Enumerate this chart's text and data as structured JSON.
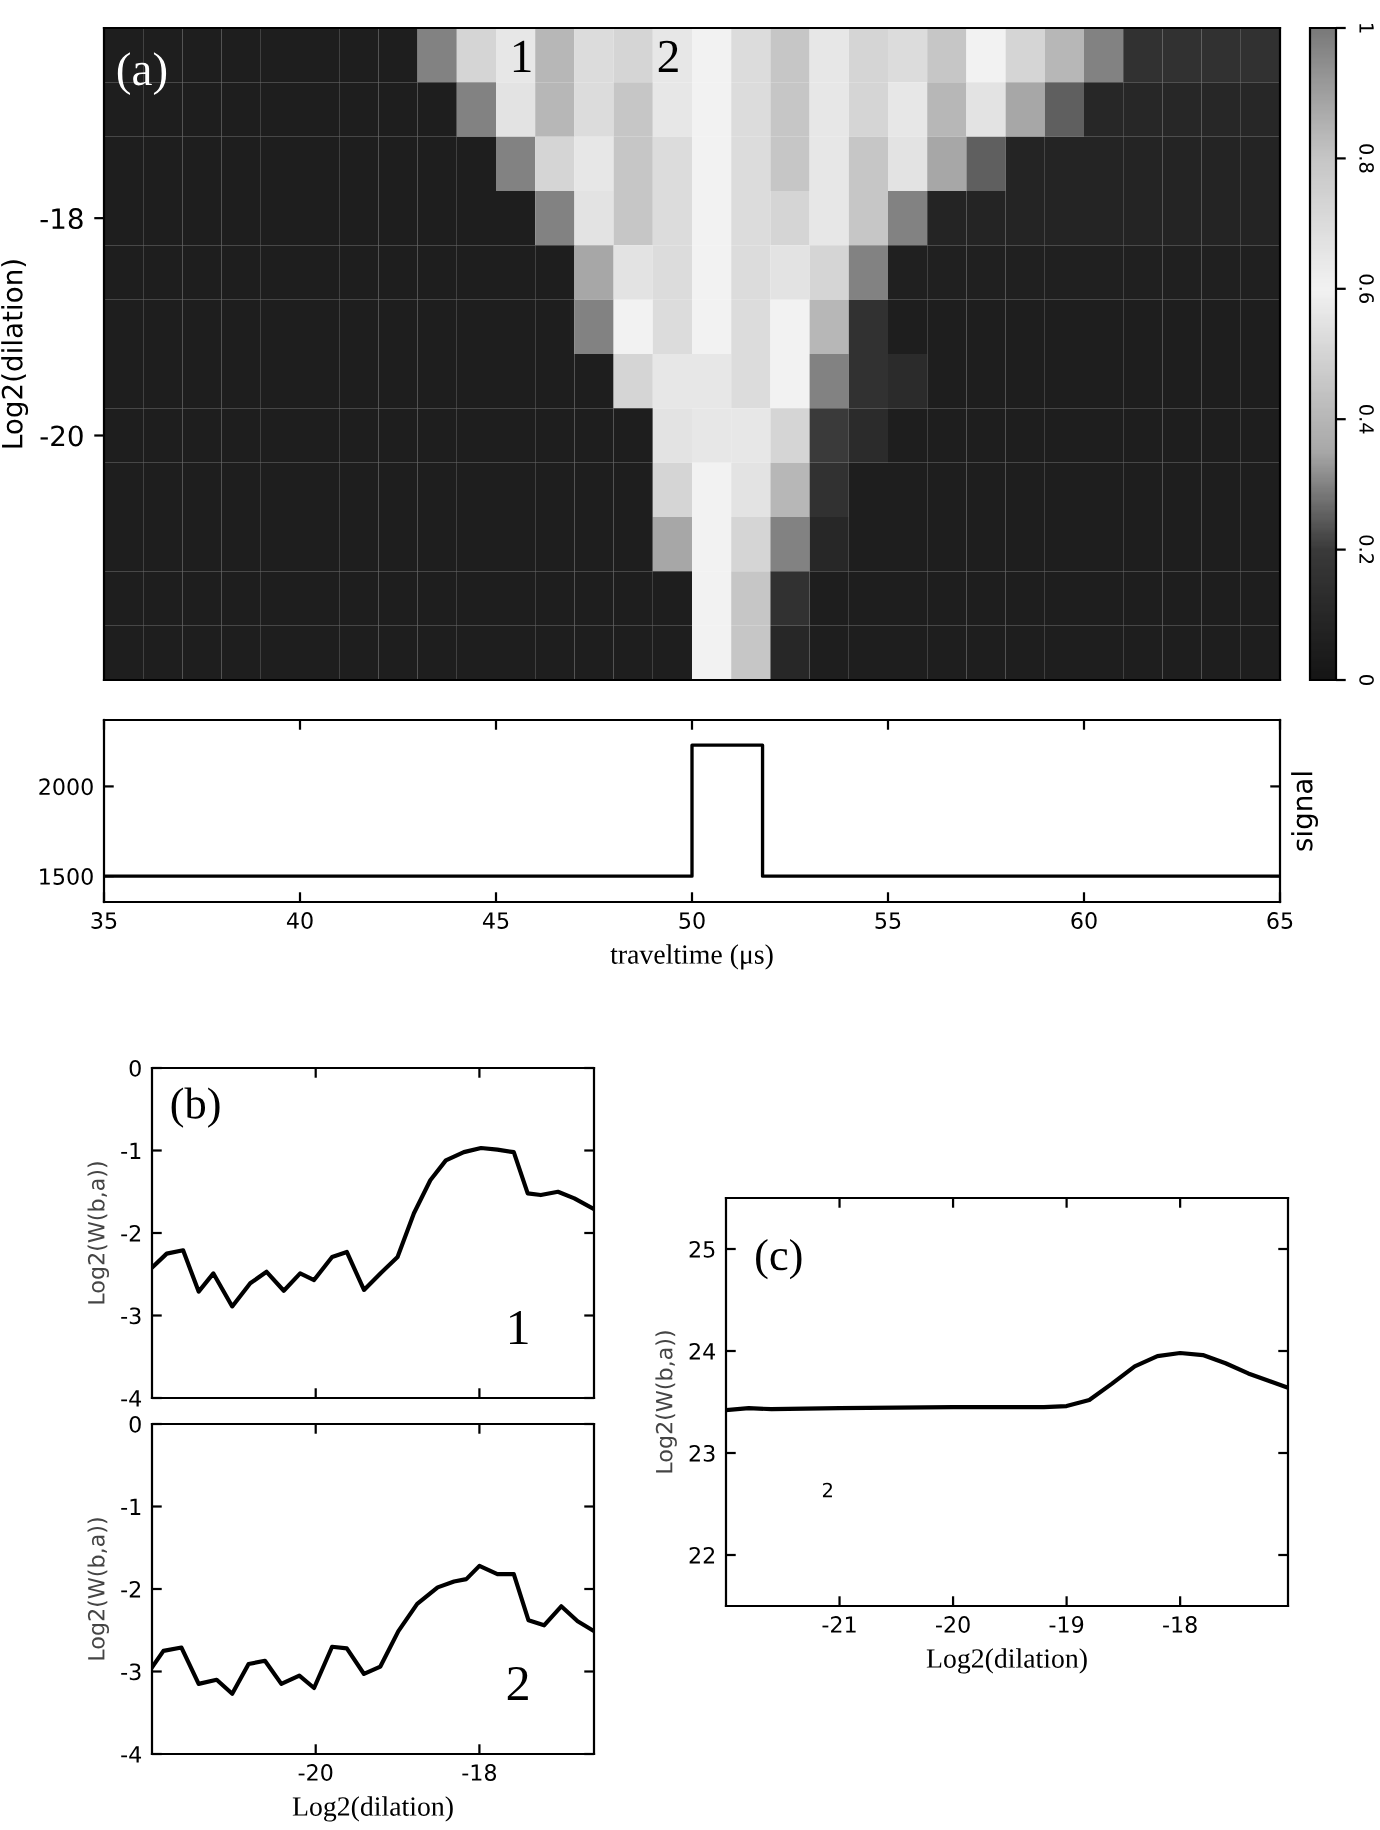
{
  "chart_data": [
    {
      "type": "heatmap",
      "ylabel": "Log2(dilation)",
      "annotations": [
        "(a)",
        "1",
        "2"
      ],
      "categories": [
        null,
        null,
        null,
        null,
        null,
        null,
        null,
        null,
        null,
        null,
        null,
        null,
        null,
        null,
        null,
        null,
        null,
        null,
        null,
        null,
        null,
        null,
        null,
        null,
        null,
        null,
        null,
        null,
        null,
        null
      ],
      "y_categories": [
        null,
        null,
        null,
        "-18",
        null,
        null,
        null,
        "-20",
        null,
        null,
        null,
        null
      ],
      "cells": [
        [
          0.05,
          0.05,
          0.05,
          0.05,
          0.05,
          0.05,
          0.05,
          0.05,
          0.3,
          0.5,
          0.65,
          0.4,
          0.7,
          0.5,
          0.65,
          0.6,
          0.7,
          0.45,
          0.65,
          0.5,
          0.7,
          0.45,
          0.6,
          0.5,
          0.4,
          0.3,
          0.15,
          0.15,
          0.15,
          0.15
        ],
        [
          0.05,
          0.05,
          0.05,
          0.05,
          0.05,
          0.05,
          0.05,
          0.05,
          0.05,
          0.3,
          0.55,
          0.4,
          0.7,
          0.45,
          0.65,
          0.6,
          0.7,
          0.45,
          0.65,
          0.5,
          0.65,
          0.4,
          0.55,
          0.35,
          0.25,
          0.1,
          0.1,
          0.1,
          0.1,
          0.1
        ],
        [
          0.05,
          0.05,
          0.05,
          0.05,
          0.05,
          0.05,
          0.05,
          0.05,
          0.05,
          0.05,
          0.3,
          0.5,
          0.65,
          0.45,
          0.7,
          0.6,
          0.7,
          0.45,
          0.65,
          0.45,
          0.55,
          0.35,
          0.25,
          0.08,
          0.08,
          0.08,
          0.08,
          0.08,
          0.08,
          0.08
        ],
        [
          0.05,
          0.05,
          0.05,
          0.05,
          0.05,
          0.05,
          0.05,
          0.05,
          0.05,
          0.05,
          0.05,
          0.3,
          0.55,
          0.45,
          0.7,
          0.6,
          0.7,
          0.5,
          0.65,
          0.45,
          0.3,
          0.08,
          0.08,
          0.08,
          0.08,
          0.08,
          0.08,
          0.08,
          0.08,
          0.08
        ],
        [
          0.05,
          0.05,
          0.05,
          0.05,
          0.05,
          0.05,
          0.05,
          0.05,
          0.05,
          0.05,
          0.05,
          0.05,
          0.35,
          0.55,
          0.7,
          0.6,
          0.7,
          0.55,
          0.5,
          0.3,
          0.06,
          0.06,
          0.06,
          0.06,
          0.06,
          0.06,
          0.06,
          0.06,
          0.06,
          0.06
        ],
        [
          0.05,
          0.05,
          0.05,
          0.05,
          0.05,
          0.05,
          0.05,
          0.05,
          0.05,
          0.05,
          0.05,
          0.05,
          0.3,
          0.6,
          0.7,
          0.6,
          0.7,
          0.6,
          0.4,
          0.15,
          0.05,
          0.05,
          0.05,
          0.05,
          0.05,
          0.05,
          0.05,
          0.05,
          0.05,
          0.05
        ],
        [
          0.05,
          0.05,
          0.05,
          0.05,
          0.05,
          0.05,
          0.05,
          0.05,
          0.05,
          0.05,
          0.05,
          0.05,
          0.05,
          0.5,
          0.65,
          0.65,
          0.7,
          0.6,
          0.3,
          0.15,
          0.12,
          0.05,
          0.05,
          0.05,
          0.05,
          0.05,
          0.05,
          0.05,
          0.05,
          0.05
        ],
        [
          0.05,
          0.05,
          0.05,
          0.05,
          0.05,
          0.05,
          0.05,
          0.05,
          0.05,
          0.05,
          0.05,
          0.05,
          0.05,
          0.05,
          0.55,
          0.65,
          0.65,
          0.5,
          0.2,
          0.12,
          0.05,
          0.05,
          0.05,
          0.05,
          0.05,
          0.05,
          0.05,
          0.05,
          0.05,
          0.05
        ],
        [
          0.05,
          0.05,
          0.05,
          0.05,
          0.05,
          0.05,
          0.05,
          0.05,
          0.05,
          0.05,
          0.05,
          0.05,
          0.05,
          0.05,
          0.5,
          0.6,
          0.55,
          0.4,
          0.15,
          0.05,
          0.05,
          0.05,
          0.05,
          0.05,
          0.05,
          0.05,
          0.05,
          0.05,
          0.05,
          0.05
        ],
        [
          0.05,
          0.05,
          0.05,
          0.05,
          0.05,
          0.05,
          0.05,
          0.05,
          0.05,
          0.05,
          0.05,
          0.05,
          0.05,
          0.05,
          0.35,
          0.6,
          0.5,
          0.3,
          0.1,
          0.05,
          0.05,
          0.05,
          0.05,
          0.05,
          0.05,
          0.05,
          0.05,
          0.05,
          0.05,
          0.05
        ],
        [
          0.05,
          0.05,
          0.05,
          0.05,
          0.05,
          0.05,
          0.05,
          0.05,
          0.05,
          0.05,
          0.05,
          0.05,
          0.05,
          0.05,
          0.05,
          0.6,
          0.45,
          0.15,
          0.05,
          0.05,
          0.05,
          0.05,
          0.05,
          0.05,
          0.05,
          0.05,
          0.05,
          0.05,
          0.05,
          0.05
        ],
        [
          0.05,
          0.05,
          0.05,
          0.05,
          0.05,
          0.05,
          0.05,
          0.05,
          0.05,
          0.05,
          0.05,
          0.05,
          0.05,
          0.05,
          0.05,
          0.6,
          0.45,
          0.1,
          0.05,
          0.05,
          0.05,
          0.05,
          0.05,
          0.05,
          0.05,
          0.05,
          0.05,
          0.05,
          0.05,
          0.05
        ]
      ],
      "clim": [
        0,
        1
      ],
      "cticks": [
        0,
        0.2,
        0.4,
        0.6,
        0.8,
        1
      ]
    },
    {
      "type": "step",
      "xlabel": "traveltime (μs)",
      "ylabel": "signal",
      "x": [
        35,
        50,
        51.8,
        65
      ],
      "series": [
        {
          "color": "#000000",
          "values": [
            1500,
            2230,
            1500,
            1500
          ]
        }
      ],
      "xlim": [
        35,
        65
      ],
      "xticks": [
        35,
        40,
        45,
        50,
        55,
        60,
        65
      ],
      "ylim": [
        1356,
        2370
      ],
      "yticks": [
        1500,
        2000
      ]
    },
    {
      "type": "line",
      "ylabel": "Log2(W(b,a))",
      "annotations": [
        "(b)",
        "1"
      ],
      "tick_labels": "y",
      "x": [
        -22,
        -21.82,
        -21.62,
        -21.43,
        -21.25,
        -21.02,
        -20.8,
        -20.6,
        -20.39,
        -20.19,
        -20.02,
        -19.8,
        -19.62,
        -19.41,
        -19.21,
        -19.0,
        -18.8,
        -18.6,
        -18.41,
        -18.19,
        -17.98,
        -17.78,
        -17.58,
        -17.41,
        -17.25,
        -17.04,
        -16.84,
        -16.6
      ],
      "series": [
        {
          "color": "#000000",
          "values": [
            -2.42,
            -2.25,
            -2.21,
            -2.71,
            -2.49,
            -2.89,
            -2.61,
            -2.47,
            -2.7,
            -2.49,
            -2.57,
            -2.29,
            -2.23,
            -2.69,
            -2.49,
            -2.29,
            -1.76,
            -1.36,
            -1.12,
            -1.02,
            -0.97,
            -0.99,
            -1.02,
            -1.52,
            -1.54,
            -1.5,
            -1.58,
            -1.71
          ]
        }
      ],
      "xlim": [
        -22,
        -16.6
      ],
      "xticks": [
        -20,
        -18
      ],
      "ylim": [
        -4,
        0
      ],
      "yticks": [
        -4,
        -3,
        -2,
        -1,
        0
      ]
    },
    {
      "type": "line",
      "xlabel": "Log2(dilation)",
      "ylabel": "Log2(W(b,a))",
      "annotations": [
        "2"
      ],
      "x": [
        -22,
        -21.86,
        -21.64,
        -21.43,
        -21.21,
        -21.02,
        -20.82,
        -20.62,
        -20.42,
        -20.2,
        -20.02,
        -19.8,
        -19.62,
        -19.41,
        -19.21,
        -18.99,
        -18.76,
        -18.51,
        -18.31,
        -18.16,
        -18.0,
        -17.78,
        -17.58,
        -17.4,
        -17.21,
        -17.0,
        -16.8,
        -16.6
      ],
      "series": [
        {
          "color": "#000000",
          "values": [
            -2.95,
            -2.75,
            -2.71,
            -3.15,
            -3.1,
            -3.27,
            -2.91,
            -2.87,
            -3.15,
            -3.05,
            -3.2,
            -2.7,
            -2.72,
            -3.03,
            -2.94,
            -2.51,
            -2.18,
            -1.98,
            -1.91,
            -1.88,
            -1.72,
            -1.82,
            -1.82,
            -2.38,
            -2.44,
            -2.21,
            -2.39,
            -2.51
          ]
        }
      ],
      "xlim": [
        -22,
        -16.6
      ],
      "xticks": [
        -20,
        -18
      ],
      "ylim": [
        -4,
        0
      ],
      "yticks": [
        -4,
        -3,
        -2,
        -1,
        0
      ]
    },
    {
      "type": "line",
      "xlabel": "Log2(dilation)",
      "ylabel": "Log2(W(b,a))",
      "annotations": [
        "(c)",
        "2"
      ],
      "x": [
        -22,
        -21.8,
        -21.6,
        -21,
        -20,
        -19.2,
        -19,
        -18.8,
        -18.6,
        -18.4,
        -18.2,
        -18.0,
        -17.8,
        -17.6,
        -17.4,
        -17.05
      ],
      "series": [
        {
          "color": "#000000",
          "values": [
            23.42,
            23.44,
            23.43,
            23.44,
            23.45,
            23.45,
            23.46,
            23.52,
            23.68,
            23.85,
            23.95,
            23.98,
            23.96,
            23.88,
            23.78,
            23.64
          ]
        }
      ],
      "xlim": [
        -22,
        -17.05
      ],
      "xticks": [
        -21,
        -20,
        -19,
        -18
      ],
      "ylim": [
        21.5,
        25.5
      ],
      "yticks": [
        22,
        23,
        24,
        25
      ]
    }
  ]
}
